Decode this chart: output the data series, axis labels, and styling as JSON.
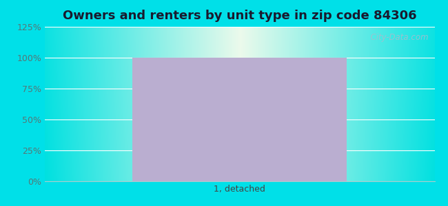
{
  "title": "Owners and renters by unit type in zip code 84306",
  "categories": [
    "1, detached"
  ],
  "values": [
    100
  ],
  "bar_color": "#baaed0",
  "ylim": [
    0,
    125
  ],
  "yticks": [
    0,
    25,
    50,
    75,
    100,
    125
  ],
  "ytick_labels": [
    "0%",
    "25%",
    "50%",
    "75%",
    "100%",
    "125%"
  ],
  "title_fontsize": 13,
  "tick_fontsize": 9,
  "bg_outer_color": "#00e0e8",
  "watermark_text": "  City-Data.com",
  "bar_width": 0.55,
  "xlim": [
    -0.5,
    0.5
  ]
}
